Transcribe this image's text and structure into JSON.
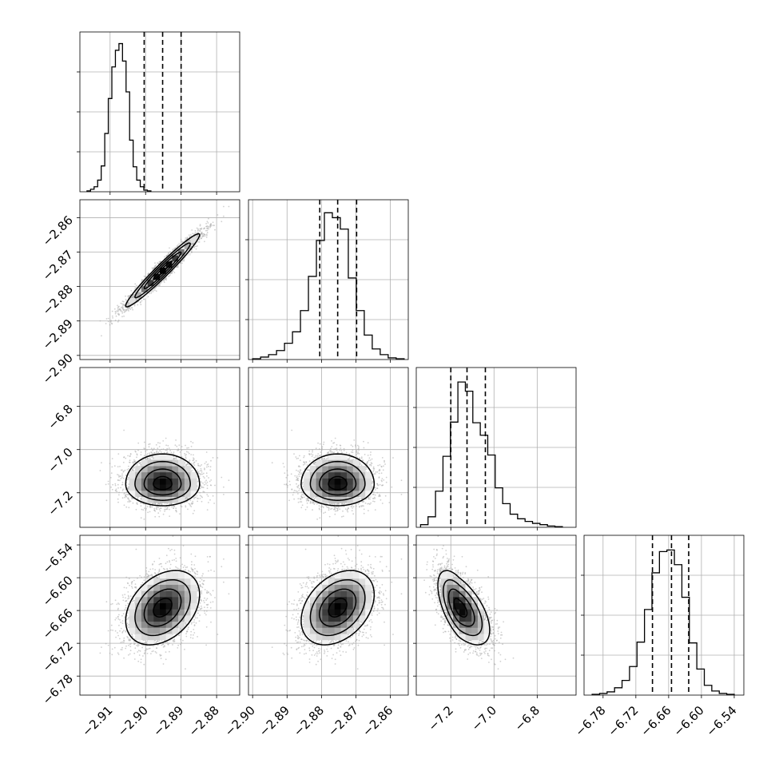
{
  "chart_data": {
    "type": "corner",
    "parameters": [
      {
        "range": [
          -2.9185,
          -2.8735
        ],
        "ticks": [
          -2.91,
          -2.9,
          -2.89,
          -2.88
        ],
        "tick_labels": [
          "−2.91",
          "−2.90",
          "−2.89",
          "−2.88"
        ],
        "quantiles": [
          -2.9004,
          -2.8952,
          -2.89
        ],
        "mean": -2.8952,
        "sd": 0.0052,
        "hist_bins": [
          -2.9165,
          -2.8985
        ],
        "hist_counts": [
          1,
          3,
          6,
          14,
          31,
          70,
          112,
          150,
          170,
          178,
          157,
          120,
          62,
          30,
          14,
          6,
          2,
          1
        ],
        "hist_ymax": 192
      },
      {
        "range": [
          -2.9012,
          -2.8548
        ],
        "ticks": [
          -2.9,
          -2.89,
          -2.88,
          -2.87,
          -2.86
        ],
        "tick_labels": [
          "−2.90",
          "−2.89",
          "−2.88",
          "−2.87",
          "−2.86"
        ],
        "quantiles": [
          -2.8805,
          -2.8753,
          -2.8698
        ],
        "mean": -2.8753,
        "sd": 0.0053,
        "hist_bins": [
          -2.9,
          -2.856
        ],
        "hist_counts": [
          1,
          3,
          6,
          11,
          20,
          34,
          60,
          102,
          146,
          180,
          174,
          160,
          100,
          60,
          30,
          13,
          6,
          2,
          1
        ],
        "hist_ymax": 196
      },
      {
        "range": [
          -7.36,
          -6.62
        ],
        "ticks": [
          -7.2,
          -7.0,
          -6.8
        ],
        "tick_labels": [
          "−7.2",
          "−7.0",
          "−6.8"
        ],
        "quantiles": [
          -7.2,
          -7.125,
          -7.04
        ],
        "mode": -7.16,
        "sd_left": 0.05,
        "sd_right": 0.07,
        "hist_bins": [
          -7.34,
          -6.6833
        ],
        "hist_counts": [
          4,
          16,
          55,
          108,
          160,
          221,
          207,
          159,
          140,
          110,
          60,
          36,
          20,
          13,
          9,
          6,
          4,
          2,
          1
        ],
        "hist_ymax": 243
      },
      {
        "range": [
          -6.8148,
          -6.5224
        ],
        "ticks": [
          -6.78,
          -6.72,
          -6.66,
          -6.6,
          -6.54
        ],
        "tick_labels": [
          "−6.78",
          "−6.72",
          "−6.66",
          "−6.60",
          "−6.54"
        ],
        "quantiles": [
          -6.6896,
          -6.6548,
          -6.6233
        ],
        "mean": -6.6548,
        "sd": 0.034,
        "hist_bins": [
          -6.8,
          -6.54
        ],
        "hist_counts": [
          1,
          2,
          4,
          9,
          18,
          35,
          65,
          105,
          150,
          176,
          178,
          160,
          120,
          64,
          32,
          12,
          5,
          2,
          1
        ],
        "hist_ymax": 196
      }
    ],
    "correlations": [
      [
        1,
        0.97,
        0.0,
        0.35
      ],
      [
        0.97,
        1,
        0.0,
        0.35
      ],
      [
        0.0,
        0.0,
        1,
        -0.6
      ],
      [
        0.35,
        0.35,
        -0.6,
        1
      ]
    ],
    "contour_levels": [
      0.118,
      0.393,
      0.675,
      0.865
    ],
    "title": "",
    "xlabel": "",
    "ylabel": "",
    "grid": true,
    "colors": {
      "line": "#000000",
      "quantile": "#000000",
      "grid": "#b0b0b0",
      "points": "#aaaaaa"
    }
  }
}
